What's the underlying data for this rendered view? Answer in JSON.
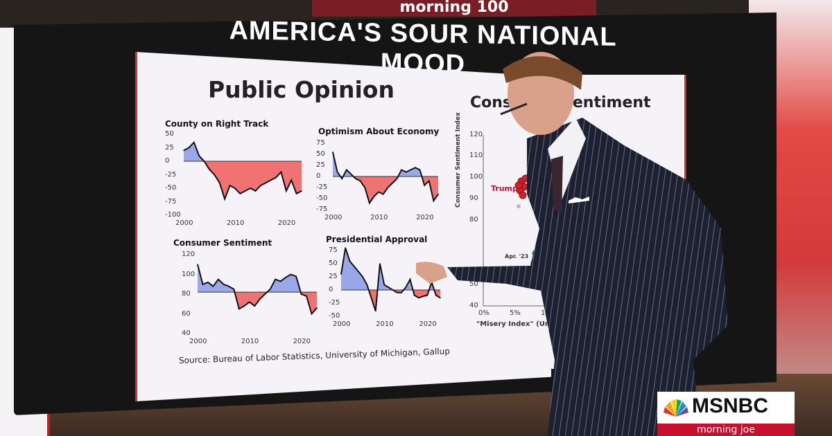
{
  "screen": {
    "headline": "AMERICA'S SOUR NATIONAL MOOD",
    "left_card": {
      "title": "Public Opinion",
      "source": "Source: Bureau of Labor Statistics, University of Michigan, Gallup"
    },
    "right_card": {
      "title": "Consumer Sentiment",
      "y_label": "Consumer Sentiment Index",
      "x_label": "\"Misery Index\" (Unempl...",
      "y_ticks": [
        "120",
        "110",
        "100",
        "90",
        "80",
        "50",
        "40"
      ],
      "x_ticks": [
        "0%",
        "5%",
        "10%"
      ],
      "annotations": [
        "Trump",
        "Apr. '23"
      ]
    }
  },
  "colors": {
    "positive_fill": "#9aa8ea",
    "negative_fill": "#f07272",
    "line": "#111111",
    "accent": "#c8102e"
  },
  "chart_data": [
    {
      "type": "area",
      "title": "County on Right Track",
      "x": [
        2000,
        2001,
        2002,
        2003,
        2004,
        2005,
        2006,
        2007,
        2008,
        2009,
        2010,
        2011,
        2012,
        2013,
        2014,
        2015,
        2016,
        2017,
        2018,
        2019,
        2020,
        2021,
        2022,
        2023
      ],
      "y": [
        20,
        25,
        35,
        10,
        0,
        -15,
        -25,
        -40,
        -70,
        -45,
        -50,
        -60,
        -55,
        -50,
        -55,
        -45,
        -40,
        -35,
        -30,
        -20,
        -55,
        -35,
        -60,
        -55
      ],
      "baseline": 0,
      "ylim": [
        -100,
        50
      ],
      "y_ticks": [
        "50",
        "25",
        "0",
        "-25",
        "-50",
        "-75",
        "-100"
      ],
      "x_ticks": [
        "2000",
        "2010",
        "2020"
      ]
    },
    {
      "type": "area",
      "title": "Optimism About Economy",
      "x": [
        2000,
        2001,
        2002,
        2003,
        2004,
        2005,
        2006,
        2007,
        2008,
        2009,
        2010,
        2011,
        2012,
        2013,
        2014,
        2015,
        2016,
        2017,
        2018,
        2019,
        2020,
        2021,
        2022,
        2023
      ],
      "y": [
        55,
        10,
        -5,
        15,
        5,
        -5,
        -10,
        -25,
        -60,
        -45,
        -35,
        -40,
        -25,
        -15,
        -5,
        15,
        10,
        15,
        20,
        15,
        -20,
        -10,
        -55,
        -40
      ],
      "baseline": 0,
      "ylim": [
        -75,
        75
      ],
      "y_ticks": [
        "75",
        "50",
        "25",
        "0",
        "-25",
        "-50",
        "-75"
      ],
      "x_ticks": [
        "2000",
        "2010",
        "2020"
      ]
    },
    {
      "type": "area",
      "title": "Consumer Sentiment",
      "x": [
        2000,
        2001,
        2002,
        2003,
        2004,
        2005,
        2006,
        2007,
        2008,
        2009,
        2010,
        2011,
        2012,
        2013,
        2014,
        2015,
        2016,
        2017,
        2018,
        2019,
        2020,
        2021,
        2022,
        2023
      ],
      "y": [
        110,
        90,
        92,
        88,
        95,
        90,
        88,
        85,
        65,
        68,
        72,
        68,
        75,
        80,
        85,
        95,
        93,
        97,
        100,
        98,
        80,
        78,
        60,
        66
      ],
      "baseline": 82,
      "ylim": [
        40,
        120
      ],
      "y_ticks": [
        "120",
        "100",
        "80",
        "60",
        "40"
      ],
      "x_ticks": [
        "2000",
        "2010",
        "2020"
      ]
    },
    {
      "type": "area",
      "title": "Presidential Approval",
      "x": [
        2000,
        2001,
        2002,
        2003,
        2004,
        2005,
        2006,
        2007,
        2008,
        2009,
        2010,
        2011,
        2012,
        2013,
        2014,
        2015,
        2016,
        2017,
        2018,
        2019,
        2020,
        2021,
        2022,
        2023
      ],
      "y": [
        30,
        80,
        55,
        45,
        35,
        25,
        10,
        -15,
        -40,
        50,
        10,
        5,
        0,
        -5,
        -5,
        5,
        20,
        -10,
        -15,
        -12,
        -10,
        15,
        -10,
        -15
      ],
      "baseline": 0,
      "ylim": [
        -50,
        75
      ],
      "y_ticks": [
        "75",
        "50",
        "25",
        "0",
        "-25",
        "-50"
      ],
      "x_ticks": [
        "2000",
        "2010",
        "2020"
      ]
    }
  ],
  "top_sign": "morning 100",
  "logo": {
    "name": "MSNBC",
    "show": "morning joe"
  }
}
